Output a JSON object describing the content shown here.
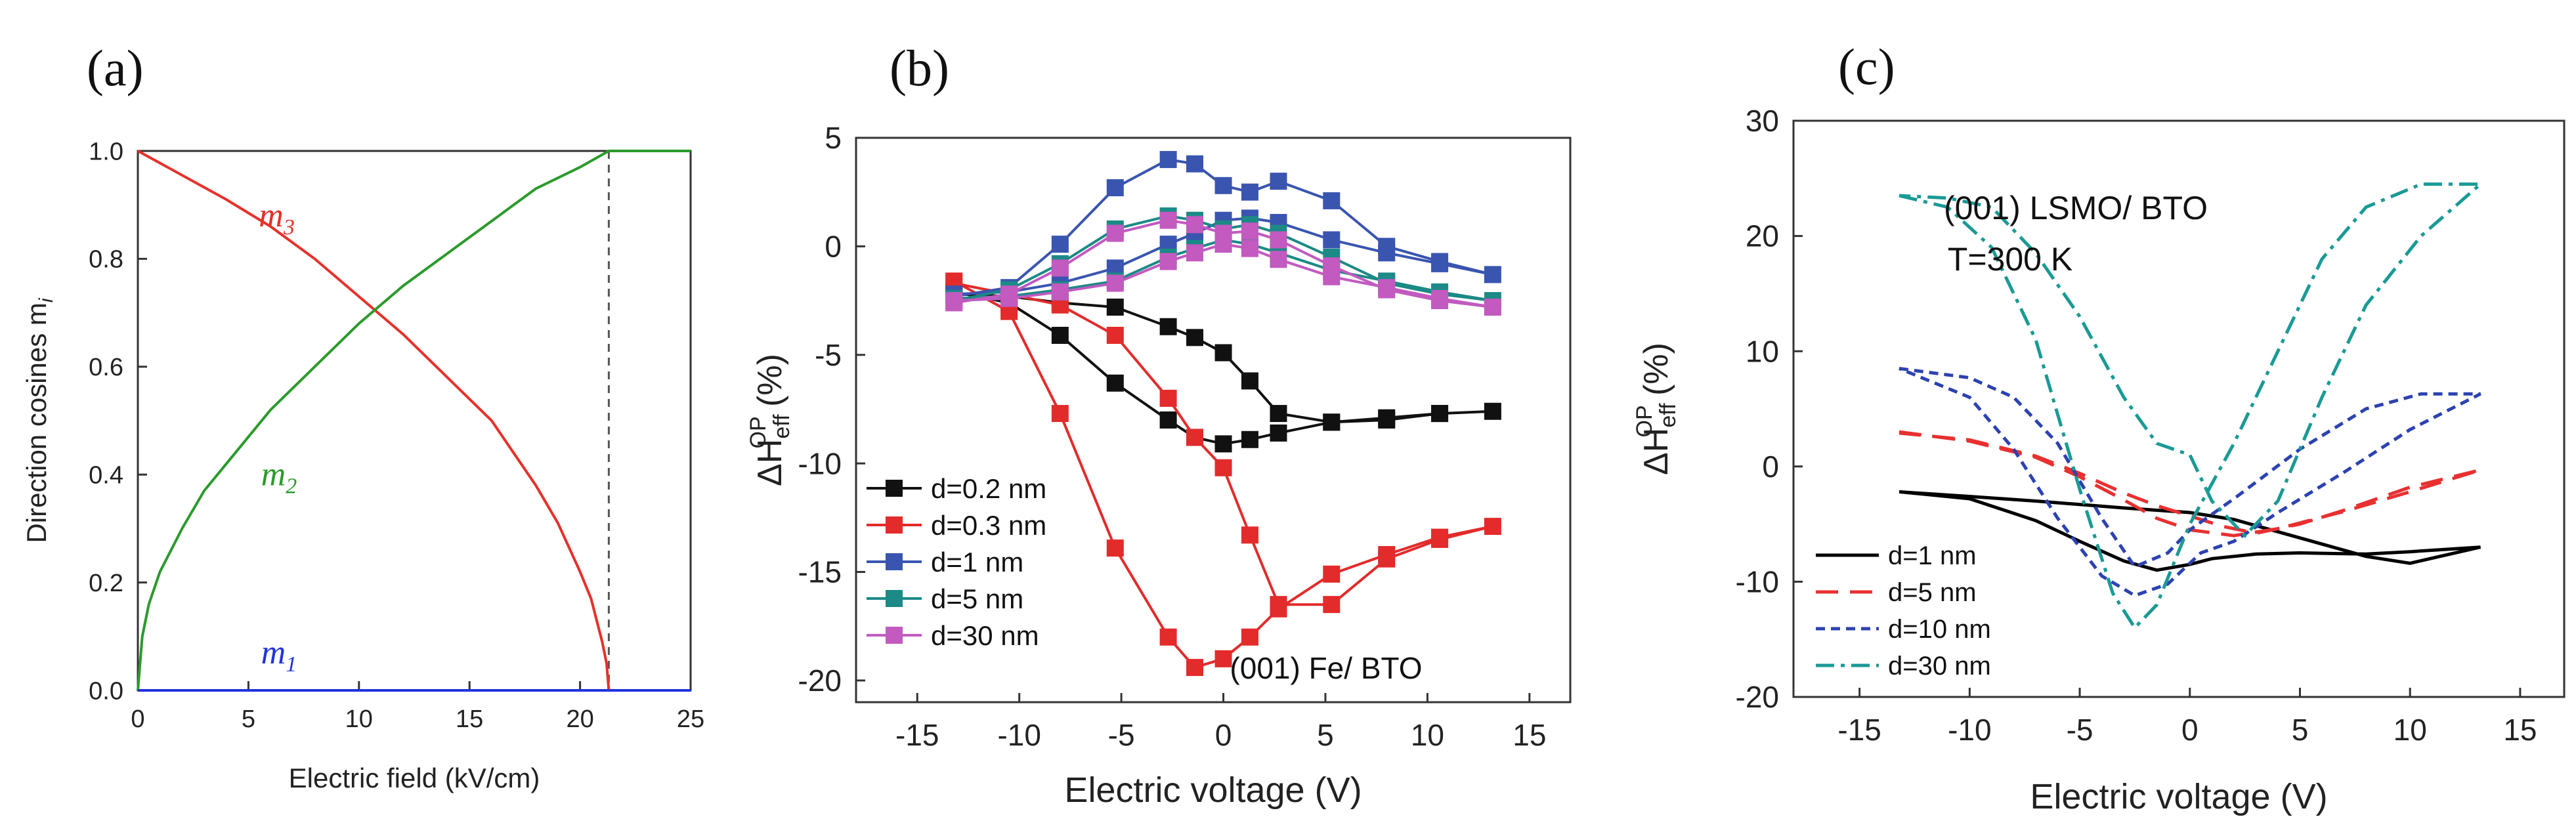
{
  "chart_data": [
    {
      "panel_label": "(a)",
      "type": "line",
      "xlabel": "Electric field (kV/cm)",
      "ylabel": "Direction cosines m",
      "ylabel_subscript": "i",
      "xlim": [
        0,
        25
      ],
      "ylim": [
        0,
        1.0
      ],
      "xticks": [
        "0",
        "5",
        "10",
        "15",
        "20",
        "25"
      ],
      "yticks": [
        "0.0",
        "0.2",
        "0.4",
        "0.6",
        "0.8",
        "1.0"
      ],
      "vline_x": 21.3,
      "series": [
        {
          "name": "m",
          "sub": "3",
          "color": "#e8302a",
          "x": [
            0,
            2,
            4,
            6,
            8,
            10,
            12,
            14,
            16,
            18,
            19,
            20,
            20.5,
            21,
            21.2,
            21.3,
            25
          ],
          "y": [
            1.0,
            0.955,
            0.91,
            0.86,
            0.8,
            0.73,
            0.66,
            0.58,
            0.5,
            0.38,
            0.31,
            0.22,
            0.17,
            0.09,
            0.05,
            0.0,
            0.0
          ]
        },
        {
          "name": "m",
          "sub": "2",
          "color": "#2b9a2b",
          "x": [
            0,
            0.2,
            0.5,
            1,
            2,
            3,
            4,
            5,
            6,
            8,
            10,
            12,
            14,
            16,
            18,
            20,
            21.3,
            25
          ],
          "y": [
            0.0,
            0.1,
            0.16,
            0.22,
            0.3,
            0.37,
            0.42,
            0.47,
            0.52,
            0.6,
            0.68,
            0.75,
            0.81,
            0.87,
            0.93,
            0.97,
            1.0,
            1.0
          ]
        },
        {
          "name": "m",
          "sub": "1",
          "color": "#2233dd",
          "x": [
            0,
            25
          ],
          "y": [
            0.0,
            0.0
          ]
        }
      ],
      "labels": [
        {
          "text": "m",
          "sub": "3",
          "x": 3.2,
          "y": 0.86,
          "color": "#e8302a"
        },
        {
          "text": "m",
          "sub": "2",
          "x": 3.2,
          "y": 0.38,
          "color": "#2b9a2b"
        },
        {
          "text": "m",
          "sub": "1",
          "x": 3.2,
          "y": 0.06,
          "color": "#2233dd"
        }
      ]
    },
    {
      "panel_label": "(b)",
      "type": "line",
      "xlabel": "Electric voltage (V)",
      "ylabel": "ΔH",
      "ylabel_sub": "eff",
      "ylabel_sup": "OP",
      "ylabel_unit": "(%)",
      "xlim": [
        -18,
        17
      ],
      "ylim": [
        -21,
        5
      ],
      "xticks": [
        "-15",
        "-10",
        "-5",
        "0",
        "5",
        "10",
        "15"
      ],
      "yticks": [
        "-20",
        "-15",
        "-10",
        "-5",
        "0",
        "5"
      ],
      "annotation": "(001) Fe/ BTO",
      "series": [
        {
          "name": "d=0.2 nm",
          "color": "#111111",
          "x": [
            -13.2,
            -10.5,
            -8,
            -5.3,
            -2.7,
            -1.4,
            0,
            1.3,
            2.7,
            5.3,
            8,
            10.6,
            13.2,
            10.6,
            8,
            5.3,
            2.7,
            1.3,
            0,
            -1.4,
            -2.7,
            -5.3,
            -8,
            -10.5,
            -13.2
          ],
          "y": [
            -2.2,
            -2.3,
            -2.6,
            -2.8,
            -3.7,
            -4.2,
            -4.9,
            -6.2,
            -7.7,
            -8.1,
            -8.0,
            -7.7,
            -7.6,
            -7.7,
            -7.9,
            -8.1,
            -8.6,
            -8.9,
            -9.1,
            -8.8,
            -8.0,
            -6.3,
            -4.1,
            -2.6,
            -2.1
          ]
        },
        {
          "name": "d=0.3 nm",
          "color": "#e32b2b",
          "x": [
            -13.2,
            -10.5,
            -8,
            -5.3,
            -2.7,
            -1.4,
            0,
            1.3,
            2.7,
            5.3,
            8,
            10.6,
            13.2,
            10.6,
            8,
            5.3,
            2.7,
            1.3,
            0,
            -1.4,
            -2.7,
            -5.3,
            -8,
            -10.5,
            -13.2
          ],
          "y": [
            -1.7,
            -2.2,
            -2.7,
            -4.1,
            -7.0,
            -8.8,
            -10.2,
            -13.3,
            -16.5,
            -16.5,
            -14.4,
            -13.5,
            -12.9,
            -13.4,
            -14.2,
            -15.1,
            -16.7,
            -18.0,
            -19.0,
            -19.4,
            -18.0,
            -13.9,
            -7.7,
            -3.0,
            -1.6
          ]
        },
        {
          "name": "d=1 nm",
          "color": "#3a55b0",
          "x": [
            -13.2,
            -10.5,
            -8,
            -5.3,
            -2.7,
            -1.4,
            0,
            1.3,
            2.7,
            5.3,
            8,
            10.6,
            13.2,
            10.6,
            8,
            5.3,
            2.7,
            1.3,
            0,
            -1.4,
            -2.7,
            -5.3,
            -8,
            -10.5,
            -13.2
          ],
          "y": [
            -2.2,
            -2.1,
            -1.7,
            -1.0,
            0.1,
            0.6,
            1.2,
            1.3,
            1.1,
            0.3,
            -0.3,
            -0.8,
            -1.3,
            -0.7,
            0.0,
            2.1,
            3.0,
            2.5,
            2.8,
            3.8,
            4.0,
            2.7,
            0.1,
            -1.9,
            -2.3
          ]
        },
        {
          "name": "d=5 nm",
          "color": "#1c8a86",
          "x": [
            -13.2,
            -10.5,
            -8,
            -5.3,
            -2.7,
            -1.4,
            0,
            1.3,
            2.7,
            5.3,
            8,
            10.6,
            13.2,
            10.6,
            8,
            5.3,
            2.7,
            1.3,
            0,
            -1.4,
            -2.7,
            -5.3,
            -8,
            -10.5,
            -13.2
          ],
          "y": [
            -2.4,
            -2.3,
            -2.0,
            -1.6,
            -0.5,
            -0.1,
            0.3,
            0.1,
            -0.3,
            -1.1,
            -1.6,
            -2.1,
            -2.5,
            -2.2,
            -1.7,
            -0.5,
            0.6,
            1.0,
            0.8,
            1.2,
            1.4,
            0.8,
            -0.8,
            -2.0,
            -2.5
          ]
        },
        {
          "name": "d=30 nm",
          "color": "#c25ac0",
          "x": [
            -13.2,
            -10.5,
            -8,
            -5.3,
            -2.7,
            -1.4,
            0,
            1.3,
            2.7,
            5.3,
            8,
            10.6,
            13.2,
            10.6,
            8,
            5.3,
            2.7,
            1.3,
            0,
            -1.4,
            -2.7,
            -5.3,
            -8,
            -10.5,
            -13.2
          ],
          "y": [
            -2.5,
            -2.4,
            -2.1,
            -1.7,
            -0.7,
            -0.3,
            0.1,
            -0.1,
            -0.6,
            -1.4,
            -1.9,
            -2.4,
            -2.8,
            -2.5,
            -2.0,
            -0.9,
            0.3,
            0.7,
            0.6,
            1.0,
            1.2,
            0.6,
            -1.0,
            -2.2,
            -2.6
          ]
        }
      ]
    },
    {
      "panel_label": "(c)",
      "type": "line",
      "xlabel": "Electric voltage (V)",
      "ylabel": "ΔH",
      "ylabel_sub": "eff",
      "ylabel_sup": "OP",
      "ylabel_unit": "(%)",
      "xlim": [
        -18,
        17
      ],
      "ylim": [
        -20,
        30
      ],
      "xticks": [
        "-15",
        "-10",
        "-5",
        "0",
        "5",
        "10",
        "15"
      ],
      "yticks": [
        "-20",
        "-10",
        "0",
        "10",
        "20",
        "30"
      ],
      "annotation1": "(001) LSMO/ BTO",
      "annotation2": "T=300 K",
      "series": [
        {
          "name": "d=1 nm",
          "color": "#000000",
          "dash": "none",
          "x": [
            -13.2,
            -10,
            -7,
            -5,
            -3,
            -1.5,
            0,
            2,
            5,
            8,
            10,
            13.2,
            10,
            8,
            5,
            3,
            1,
            0,
            -1.5,
            -3,
            -5,
            -7,
            -10,
            -13.2
          ],
          "y": [
            -2.2,
            -2.6,
            -3.0,
            -3.3,
            -3.6,
            -3.8,
            -4.0,
            -4.6,
            -6.2,
            -7.8,
            -8.4,
            -7.0,
            -7.4,
            -7.6,
            -7.5,
            -7.6,
            -8.0,
            -8.5,
            -9.0,
            -8.2,
            -6.5,
            -4.7,
            -2.8,
            -2.2
          ]
        },
        {
          "name": "d=5 nm",
          "color": "#e83030",
          "dash": "34 18",
          "x": [
            -13.2,
            -10,
            -7,
            -5,
            -3,
            -1.5,
            0,
            2,
            4,
            7,
            10,
            13.2,
            10,
            7,
            5,
            3,
            1.5,
            0,
            -1.5,
            -3,
            -5,
            -7,
            -10,
            -13.2
          ],
          "y": [
            3.0,
            2.2,
            0.8,
            -0.9,
            -2.9,
            -4.5,
            -5.5,
            -6.0,
            -5.4,
            -3.9,
            -2.2,
            -0.3,
            -1.8,
            -3.8,
            -5.0,
            -5.8,
            -5.2,
            -4.3,
            -3.4,
            -2.3,
            -0.6,
            0.9,
            2.3,
            2.9
          ]
        },
        {
          "name": "d=10 nm",
          "color": "#2d42b0",
          "dash": "14 9",
          "x": [
            -13.2,
            -10,
            -8,
            -6,
            -4,
            -2.5,
            -1,
            0,
            2,
            5,
            8,
            10.5,
            13.2,
            10,
            7,
            4,
            2,
            0.5,
            -1,
            -2.5,
            -4,
            -6,
            -8,
            -10,
            -13.2
          ],
          "y": [
            8.5,
            7.7,
            6.0,
            2.0,
            -4.5,
            -8.7,
            -7.5,
            -5.5,
            -2.8,
            1.5,
            5.0,
            6.3,
            6.3,
            3.2,
            -0.5,
            -4.0,
            -6.5,
            -7.5,
            -10.2,
            -11.2,
            -9.5,
            -4.5,
            1.5,
            6.0,
            8.5
          ]
        },
        {
          "name": "d=30 nm",
          "color": "#1a9a95",
          "dash": "28 10 6 10",
          "x": [
            -13.2,
            -11,
            -9,
            -7,
            -5,
            -3.5,
            -2.5,
            -1.5,
            0,
            2,
            4,
            6,
            8,
            10.5,
            13.2,
            10.5,
            8,
            6,
            4,
            2.5,
            1,
            0,
            -1.5,
            -3,
            -5,
            -7,
            -9,
            -11,
            -13.2
          ],
          "y": [
            23.5,
            22.5,
            19.0,
            11.0,
            -2.0,
            -11.0,
            -14.0,
            -12.0,
            -5.0,
            2.0,
            10.0,
            18.0,
            22.5,
            24.5,
            24.5,
            20.0,
            14.0,
            6.0,
            -3.0,
            -6.0,
            -3.0,
            1.0,
            2.0,
            6.0,
            13.0,
            18.5,
            22.5,
            23.3,
            23.5
          ]
        }
      ]
    }
  ]
}
